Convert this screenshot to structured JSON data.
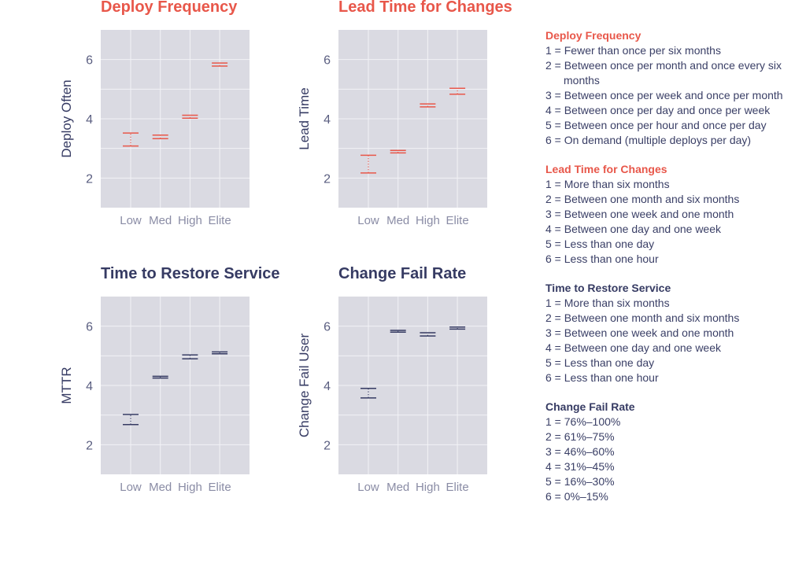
{
  "colors": {
    "accent": "#e8574a",
    "navy": "#363b63",
    "plot_bg": "#dadae2",
    "grid": "#f2f2f6",
    "tick": "#8a8ca5"
  },
  "chart_data": [
    {
      "type": "errorbar",
      "title": "Deploy Frequency",
      "title_color": "#e8574a",
      "bar_color": "#e8574a",
      "ylabel": "Deploy Often",
      "xlabel": "",
      "categories": [
        "Low",
        "Med",
        "High",
        "Elite"
      ],
      "yticks": [
        "2",
        "4",
        "6"
      ],
      "ylim": [
        1,
        7
      ],
      "grid": true,
      "intervals": [
        [
          3.08,
          3.52
        ],
        [
          3.33,
          3.45
        ],
        [
          4.02,
          4.12
        ],
        [
          5.78,
          5.88
        ]
      ]
    },
    {
      "type": "errorbar",
      "title": "Lead Time for Changes",
      "title_color": "#e8574a",
      "bar_color": "#e8574a",
      "ylabel": "Lead Time",
      "xlabel": "",
      "categories": [
        "Low",
        "Med",
        "High",
        "Elite"
      ],
      "yticks": [
        "2",
        "4",
        "6"
      ],
      "ylim": [
        1,
        7
      ],
      "grid": true,
      "intervals": [
        [
          2.17,
          2.77
        ],
        [
          2.85,
          2.93
        ],
        [
          4.4,
          4.5
        ],
        [
          4.83,
          5.03
        ]
      ]
    },
    {
      "type": "errorbar",
      "title": "Time to Restore Service",
      "title_color": "#363b63",
      "bar_color": "#363b63",
      "ylabel": "MTTR",
      "xlabel": "",
      "categories": [
        "Low",
        "Med",
        "High",
        "Elite"
      ],
      "yticks": [
        "2",
        "4",
        "6"
      ],
      "ylim": [
        1,
        7
      ],
      "grid": true,
      "intervals": [
        [
          2.68,
          3.02
        ],
        [
          4.25,
          4.31
        ],
        [
          4.9,
          5.03
        ],
        [
          5.07,
          5.13
        ]
      ]
    },
    {
      "type": "errorbar",
      "title": "Change Fail Rate",
      "title_color": "#363b63",
      "bar_color": "#363b63",
      "ylabel": "Change Fail User",
      "xlabel": "",
      "categories": [
        "Low",
        "Med",
        "High",
        "Elite"
      ],
      "yticks": [
        "2",
        "4",
        "6"
      ],
      "ylim": [
        1,
        7
      ],
      "grid": true,
      "intervals": [
        [
          3.58,
          3.9
        ],
        [
          5.8,
          5.86
        ],
        [
          5.67,
          5.78
        ],
        [
          5.9,
          5.97
        ]
      ]
    }
  ],
  "legend": [
    {
      "title": "Deploy Frequency",
      "color": "#e8574a",
      "items": [
        "1 = Fewer than once per six months",
        "2 = Between once per month and once every six months",
        "3 = Between once per week and once per month",
        "4 = Between once per day and once per week",
        "5 = Between once per hour and once per day",
        "6 = On demand (multiple deploys per day)"
      ]
    },
    {
      "title": "Lead Time for Changes",
      "color": "#e8574a",
      "items": [
        "1 = More than six months",
        "2 = Between one month and six months",
        "3 = Between one week and one month",
        "4 = Between one day and one week",
        "5 = Less than one day",
        "6 = Less than one hour"
      ]
    },
    {
      "title": "Time to Restore Service",
      "color": "#363b63",
      "items": [
        "1 = More than six months",
        "2 = Between one month and six months",
        "3 = Between one week and one month",
        "4 = Between one day and one week",
        "5 = Less than one day",
        "6 = Less than one hour"
      ]
    },
    {
      "title": "Change Fail Rate",
      "color": "#363b63",
      "items": [
        "1 = 76%–100%",
        "2 = 61%–75%",
        "3 = 46%–60%",
        "4 = 31%–45%",
        "5 = 16%–30%",
        "6 = 0%–15%"
      ]
    }
  ]
}
